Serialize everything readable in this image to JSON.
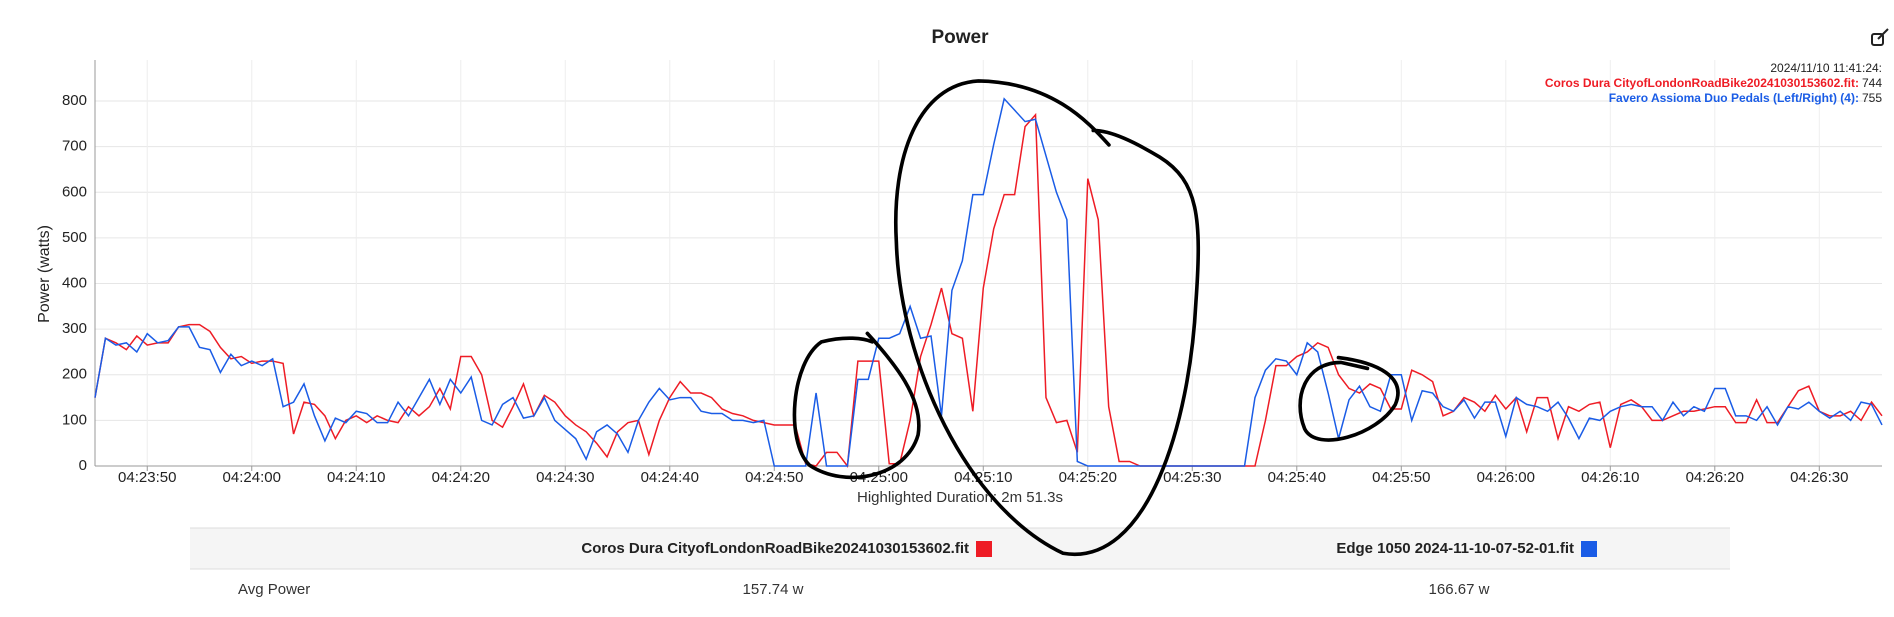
{
  "chart_data": {
    "type": "line",
    "title": "Power",
    "y_label": "Power (watts)",
    "subtitle": "Highlighted Duration: 2m 51.3s",
    "x": [
      "04:23:45",
      "04:23:46",
      "04:23:47",
      "04:23:48",
      "04:23:49",
      "04:23:50",
      "04:23:51",
      "04:23:52",
      "04:23:53",
      "04:23:54",
      "04:23:55",
      "04:23:56",
      "04:23:57",
      "04:23:58",
      "04:23:59",
      "04:24:00",
      "04:24:01",
      "04:24:02",
      "04:24:03",
      "04:24:04",
      "04:24:05",
      "04:24:06",
      "04:24:07",
      "04:24:08",
      "04:24:09",
      "04:24:10",
      "04:24:11",
      "04:24:12",
      "04:24:13",
      "04:24:14",
      "04:24:15",
      "04:24:16",
      "04:24:17",
      "04:24:18",
      "04:24:19",
      "04:24:20",
      "04:24:21",
      "04:24:22",
      "04:24:23",
      "04:24:24",
      "04:24:25",
      "04:24:26",
      "04:24:27",
      "04:24:28",
      "04:24:29",
      "04:24:30",
      "04:24:31",
      "04:24:32",
      "04:24:33",
      "04:24:34",
      "04:24:35",
      "04:24:36",
      "04:24:37",
      "04:24:38",
      "04:24:39",
      "04:24:40",
      "04:24:41",
      "04:24:42",
      "04:24:43",
      "04:24:44",
      "04:24:45",
      "04:24:46",
      "04:24:47",
      "04:24:48",
      "04:24:49",
      "04:24:50",
      "04:24:51",
      "04:24:52",
      "04:24:53",
      "04:24:54",
      "04:24:55",
      "04:24:56",
      "04:24:57",
      "04:24:58",
      "04:24:59",
      "04:25:00",
      "04:25:01",
      "04:25:02",
      "04:25:03",
      "04:25:04",
      "04:25:05",
      "04:25:06",
      "04:25:07",
      "04:25:08",
      "04:25:09",
      "04:25:10",
      "04:25:11",
      "04:25:12",
      "04:25:13",
      "04:25:14",
      "04:25:15",
      "04:25:16",
      "04:25:17",
      "04:25:18",
      "04:25:19",
      "04:25:20",
      "04:25:21",
      "04:25:22",
      "04:25:23",
      "04:25:24",
      "04:25:25",
      "04:25:26",
      "04:25:27",
      "04:25:28",
      "04:25:29",
      "04:25:30",
      "04:25:31",
      "04:25:32",
      "04:25:33",
      "04:25:34",
      "04:25:35",
      "04:25:36",
      "04:25:37",
      "04:25:38",
      "04:25:39",
      "04:25:40",
      "04:25:41",
      "04:25:42",
      "04:25:43",
      "04:25:44",
      "04:25:45",
      "04:25:46",
      "04:25:47",
      "04:25:48",
      "04:25:49",
      "04:25:50",
      "04:25:51",
      "04:25:52",
      "04:25:53",
      "04:25:54",
      "04:25:55",
      "04:25:56",
      "04:25:57",
      "04:25:58",
      "04:25:59",
      "04:26:00",
      "04:26:01",
      "04:26:02",
      "04:26:03",
      "04:26:04",
      "04:26:05",
      "04:26:06",
      "04:26:07",
      "04:26:08",
      "04:26:09",
      "04:26:10",
      "04:26:11",
      "04:26:12",
      "04:26:13",
      "04:26:14",
      "04:26:15",
      "04:26:16",
      "04:26:17",
      "04:26:18",
      "04:26:19",
      "04:26:20",
      "04:26:21",
      "04:26:22",
      "04:26:23",
      "04:26:24",
      "04:26:25",
      "04:26:26",
      "04:26:27",
      "04:26:28",
      "04:26:29",
      "04:26:30",
      "04:26:31",
      "04:26:32",
      "04:26:33",
      "04:26:34",
      "04:26:35",
      "04:26:36"
    ],
    "series": [
      {
        "name": "Coros Dura CityofLondonRoadBike20241030153602.fit",
        "color": "#ee1c25",
        "values": [
          150,
          280,
          270,
          255,
          285,
          265,
          270,
          270,
          305,
          310,
          310,
          295,
          260,
          235,
          240,
          225,
          230,
          230,
          225,
          70,
          140,
          135,
          110,
          60,
          100,
          110,
          95,
          110,
          100,
          95,
          130,
          110,
          130,
          170,
          125,
          240,
          240,
          200,
          100,
          85,
          130,
          180,
          110,
          155,
          140,
          110,
          90,
          75,
          50,
          20,
          75,
          95,
          100,
          25,
          100,
          150,
          185,
          160,
          160,
          150,
          125,
          115,
          110,
          100,
          95,
          90,
          90,
          90,
          5,
          0,
          30,
          30,
          0,
          230,
          230,
          230,
          5,
          5,
          100,
          240,
          310,
          390,
          290,
          280,
          120,
          390,
          520,
          595,
          595,
          744,
          770,
          150,
          95,
          100,
          30,
          630,
          540,
          130,
          10,
          10,
          0,
          0,
          0,
          0,
          0,
          0,
          0,
          0,
          0,
          0,
          0,
          0,
          100,
          220,
          220,
          240,
          250,
          270,
          260,
          200,
          170,
          160,
          180,
          170,
          125,
          125,
          210,
          200,
          185,
          110,
          120,
          150,
          140,
          120,
          155,
          125,
          150,
          75,
          150,
          150,
          60,
          130,
          120,
          135,
          140,
          40,
          135,
          145,
          130,
          100,
          100,
          110,
          120,
          120,
          125,
          130,
          130,
          95,
          95,
          145,
          95,
          95,
          130,
          165,
          175,
          120,
          110,
          110,
          120,
          100,
          140,
          110
        ]
      },
      {
        "name": "Edge 1050 2024-11-10-07-52-01.fit",
        "color": "#1a5ce6",
        "values": [
          150,
          280,
          265,
          270,
          250,
          290,
          270,
          275,
          305,
          305,
          260,
          255,
          205,
          245,
          220,
          230,
          220,
          235,
          130,
          140,
          180,
          110,
          55,
          105,
          95,
          120,
          115,
          95,
          95,
          140,
          110,
          150,
          190,
          135,
          190,
          160,
          195,
          100,
          90,
          135,
          150,
          105,
          110,
          150,
          100,
          80,
          60,
          15,
          75,
          90,
          70,
          30,
          100,
          140,
          170,
          145,
          150,
          150,
          120,
          115,
          115,
          100,
          100,
          95,
          100,
          0,
          0,
          0,
          0,
          160,
          0,
          0,
          0,
          190,
          190,
          280,
          280,
          290,
          350,
          280,
          285,
          110,
          385,
          450,
          595,
          595,
          705,
          805,
          780,
          755,
          760,
          680,
          600,
          540,
          10,
          0,
          0,
          0,
          0,
          0,
          0,
          0,
          0,
          0,
          0,
          0,
          0,
          0,
          0,
          0,
          0,
          150,
          210,
          235,
          230,
          200,
          270,
          250,
          160,
          60,
          145,
          175,
          130,
          120,
          200,
          200,
          100,
          165,
          160,
          130,
          120,
          145,
          105,
          140,
          140,
          65,
          150,
          135,
          130,
          120,
          140,
          105,
          60,
          105,
          100,
          120,
          130,
          135,
          130,
          130,
          100,
          140,
          110,
          130,
          120,
          170,
          170,
          110,
          110,
          100,
          130,
          90,
          130,
          125,
          140,
          120,
          105,
          120,
          100,
          140,
          135,
          90
        ]
      }
    ],
    "xlim": [
      "04:23:45",
      "04:26:36"
    ],
    "xticks": [
      "04:23:50",
      "04:24:00",
      "04:24:10",
      "04:24:20",
      "04:24:30",
      "04:24:40",
      "04:24:50",
      "04:25:00",
      "04:25:10",
      "04:25:20",
      "04:25:30",
      "04:25:40",
      "04:25:50",
      "04:26:00",
      "04:26:10",
      "04:26:20",
      "04:26:30"
    ],
    "ylim": [
      0,
      890
    ],
    "yticks": [
      0,
      100,
      200,
      300,
      400,
      500,
      600,
      700,
      800
    ],
    "grid": true,
    "tooltip": {
      "time": "2024/11/10 11:41:24:",
      "entries": [
        {
          "label": "Coros Dura CityofLondonRoadBike20241030153602.fit:",
          "value": 744
        },
        {
          "label": "Favero Assioma Duo Pedals (Left/Right) (4):",
          "value": 755
        }
      ]
    }
  },
  "table": {
    "rows": [
      [
        "Avg Power",
        "157.74 w",
        "166.67 w"
      ]
    ]
  }
}
